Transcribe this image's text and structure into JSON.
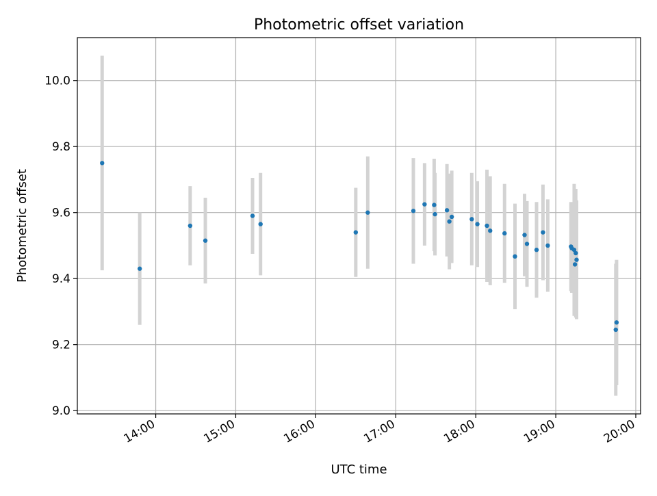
{
  "chart_data": {
    "type": "scatter",
    "title": "Photometric offset variation",
    "xlabel": "UTC time",
    "ylabel": "Photometric offset",
    "x_unit": "hours (UTC)",
    "xlim": [
      13.02,
      20.06
    ],
    "ylim": [
      8.99,
      10.13
    ],
    "x_ticks": [
      {
        "value": 14,
        "label": "14:00"
      },
      {
        "value": 15,
        "label": "15:00"
      },
      {
        "value": 16,
        "label": "16:00"
      },
      {
        "value": 17,
        "label": "17:00"
      },
      {
        "value": 18,
        "label": "18:00"
      },
      {
        "value": 19,
        "label": "19:00"
      },
      {
        "value": 20,
        "label": "20:00"
      }
    ],
    "y_ticks": [
      {
        "value": 9.0,
        "label": "9.0"
      },
      {
        "value": 9.2,
        "label": "9.2"
      },
      {
        "value": 9.4,
        "label": "9.4"
      },
      {
        "value": 9.6,
        "label": "9.6"
      },
      {
        "value": 9.8,
        "label": "9.8"
      },
      {
        "value": 10.0,
        "label": "10.0"
      }
    ],
    "grid": true,
    "marker_color": "#1f77b4",
    "errorbar_color": "#d3d3d3",
    "points": [
      {
        "x": 13.33,
        "y": 9.75,
        "err": 0.325
      },
      {
        "x": 13.8,
        "y": 9.43,
        "err": 0.17
      },
      {
        "x": 14.43,
        "y": 9.56,
        "err": 0.12
      },
      {
        "x": 14.62,
        "y": 9.515,
        "err": 0.13
      },
      {
        "x": 15.21,
        "y": 9.59,
        "err": 0.115
      },
      {
        "x": 15.31,
        "y": 9.565,
        "err": 0.155
      },
      {
        "x": 16.5,
        "y": 9.54,
        "err": 0.135
      },
      {
        "x": 16.65,
        "y": 9.6,
        "err": 0.17
      },
      {
        "x": 17.22,
        "y": 9.605,
        "err": 0.16
      },
      {
        "x": 17.36,
        "y": 9.625,
        "err": 0.125
      },
      {
        "x": 17.48,
        "y": 9.623,
        "err": 0.14
      },
      {
        "x": 17.49,
        "y": 9.595,
        "err": 0.125
      },
      {
        "x": 17.64,
        "y": 9.607,
        "err": 0.14
      },
      {
        "x": 17.67,
        "y": 9.573,
        "err": 0.145
      },
      {
        "x": 17.7,
        "y": 9.587,
        "err": 0.14
      },
      {
        "x": 17.95,
        "y": 9.58,
        "err": 0.14
      },
      {
        "x": 18.02,
        "y": 9.565,
        "err": 0.13
      },
      {
        "x": 18.14,
        "y": 9.56,
        "err": 0.17
      },
      {
        "x": 18.18,
        "y": 9.545,
        "err": 0.165
      },
      {
        "x": 18.36,
        "y": 9.537,
        "err": 0.15
      },
      {
        "x": 18.49,
        "y": 9.467,
        "err": 0.16
      },
      {
        "x": 18.61,
        "y": 9.532,
        "err": 0.125
      },
      {
        "x": 18.64,
        "y": 9.505,
        "err": 0.13
      },
      {
        "x": 18.76,
        "y": 9.487,
        "err": 0.145
      },
      {
        "x": 18.84,
        "y": 9.54,
        "err": 0.145
      },
      {
        "x": 18.9,
        "y": 9.5,
        "err": 0.14
      },
      {
        "x": 19.19,
        "y": 9.497,
        "err": 0.135
      },
      {
        "x": 19.2,
        "y": 9.492,
        "err": 0.135
      },
      {
        "x": 19.23,
        "y": 9.487,
        "err": 0.2
      },
      {
        "x": 19.24,
        "y": 9.443,
        "err": 0.15
      },
      {
        "x": 19.25,
        "y": 9.477,
        "err": 0.195
      },
      {
        "x": 19.26,
        "y": 9.457,
        "err": 0.18
      },
      {
        "x": 19.75,
        "y": 9.245,
        "err": 0.2
      },
      {
        "x": 19.76,
        "y": 9.267,
        "err": 0.19
      }
    ]
  }
}
